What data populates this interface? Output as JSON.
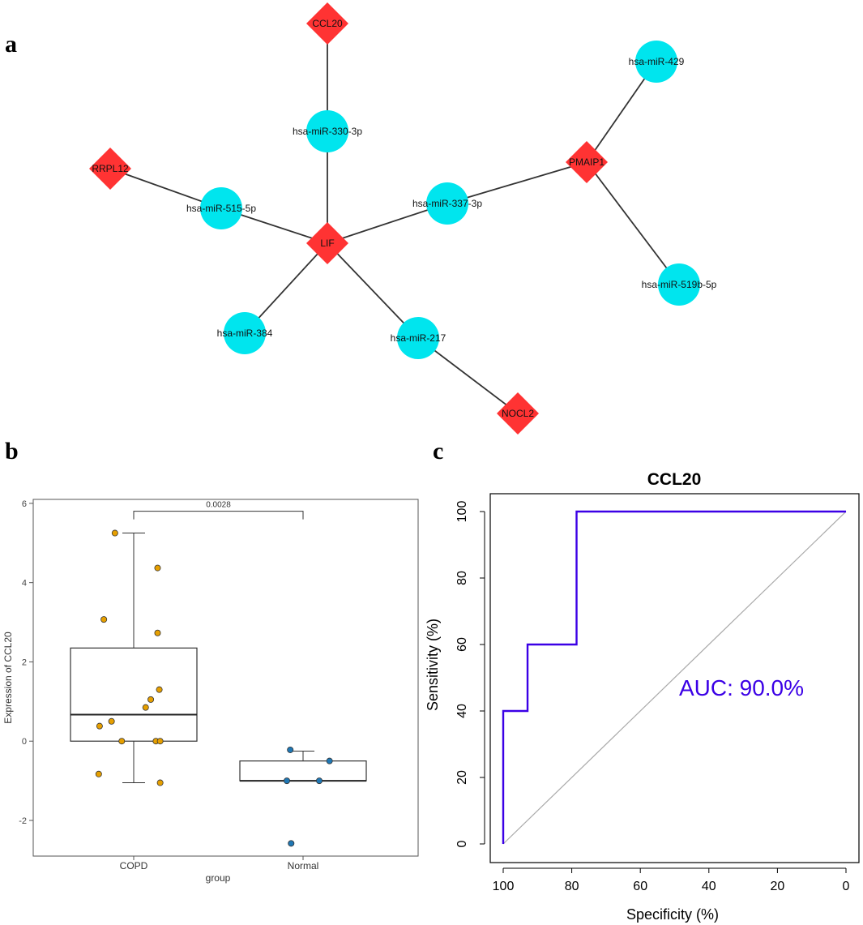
{
  "panels": {
    "a": "a",
    "b": "b",
    "c": "c"
  },
  "network": {
    "gene_color": "#ff3333",
    "mirna_color": "#00e5ee",
    "edge_color": "#333333",
    "nodes": [
      {
        "id": "CCL20",
        "type": "gene"
      },
      {
        "id": "RRPL12",
        "type": "gene"
      },
      {
        "id": "LIF",
        "type": "gene"
      },
      {
        "id": "PMAIP1",
        "type": "gene"
      },
      {
        "id": "NOCL2",
        "type": "gene"
      },
      {
        "id": "hsa-miR-330-3p",
        "type": "mirna"
      },
      {
        "id": "hsa-miR-515-5p",
        "type": "mirna"
      },
      {
        "id": "hsa-miR-337-3p",
        "type": "mirna"
      },
      {
        "id": "hsa-miR-429",
        "type": "mirna"
      },
      {
        "id": "hsa-miR-519b-5p",
        "type": "mirna"
      },
      {
        "id": "hsa-miR-384",
        "type": "mirna"
      },
      {
        "id": "hsa-miR-217",
        "type": "mirna"
      }
    ],
    "edges": [
      [
        "CCL20",
        "hsa-miR-330-3p"
      ],
      [
        "hsa-miR-330-3p",
        "LIF"
      ],
      [
        "RRPL12",
        "hsa-miR-515-5p"
      ],
      [
        "hsa-miR-515-5p",
        "LIF"
      ],
      [
        "LIF",
        "hsa-miR-337-3p"
      ],
      [
        "hsa-miR-337-3p",
        "PMAIP1"
      ],
      [
        "PMAIP1",
        "hsa-miR-429"
      ],
      [
        "PMAIP1",
        "hsa-miR-519b-5p"
      ],
      [
        "LIF",
        "hsa-miR-384"
      ],
      [
        "LIF",
        "hsa-miR-217"
      ],
      [
        "hsa-miR-217",
        "NOCL2"
      ]
    ]
  },
  "chart_data": [
    {
      "type": "box",
      "title": "",
      "xlabel": "group",
      "ylabel": "Expression of CCL20",
      "ylim": [
        -2.9,
        6.1
      ],
      "yticks": [
        -2,
        0,
        2,
        4,
        6
      ],
      "categories": [
        "COPD",
        "Normal"
      ],
      "boxes": [
        {
          "name": "COPD",
          "whisker_low": -1.05,
          "q1": 0.0,
          "median": 0.67,
          "q3": 2.35,
          "whisker_high": 5.25,
          "color": "#e69f00"
        },
        {
          "name": "Normal",
          "whisker_low": -1.0,
          "q1": -1.0,
          "median": -1.0,
          "q3": -0.5,
          "whisker_high": -0.25,
          "color": "#1f77b4"
        }
      ],
      "points": [
        {
          "group": "COPD",
          "jitter": -0.22,
          "value": 5.25
        },
        {
          "group": "COPD",
          "jitter": 0.28,
          "value": 4.37
        },
        {
          "group": "COPD",
          "jitter": -0.35,
          "value": 3.07
        },
        {
          "group": "COPD",
          "jitter": 0.28,
          "value": 2.73
        },
        {
          "group": "COPD",
          "jitter": 0.3,
          "value": 1.3
        },
        {
          "group": "COPD",
          "jitter": 0.2,
          "value": 1.05
        },
        {
          "group": "COPD",
          "jitter": 0.14,
          "value": 0.85
        },
        {
          "group": "COPD",
          "jitter": -0.26,
          "value": 0.5
        },
        {
          "group": "COPD",
          "jitter": -0.4,
          "value": 0.38
        },
        {
          "group": "COPD",
          "jitter": -0.14,
          "value": 0.0
        },
        {
          "group": "COPD",
          "jitter": 0.26,
          "value": 0.0
        },
        {
          "group": "COPD",
          "jitter": 0.31,
          "value": 0.0
        },
        {
          "group": "COPD",
          "jitter": -0.41,
          "value": -0.83
        },
        {
          "group": "COPD",
          "jitter": 0.31,
          "value": -1.05
        },
        {
          "group": "Normal",
          "jitter": -0.15,
          "value": -0.22
        },
        {
          "group": "Normal",
          "jitter": 0.31,
          "value": -0.5
        },
        {
          "group": "Normal",
          "jitter": -0.19,
          "value": -1.0
        },
        {
          "group": "Normal",
          "jitter": 0.19,
          "value": -1.0
        },
        {
          "group": "Normal",
          "jitter": -0.14,
          "value": -2.58
        }
      ],
      "annotation": {
        "label": "0.0028",
        "from": "COPD",
        "to": "Normal",
        "y": 5.8
      }
    },
    {
      "type": "line",
      "title": "CCL20",
      "xlabel": "Specificity (%)",
      "ylabel": "Sensitivity (%)",
      "xlim": [
        100,
        0
      ],
      "ylim": [
        0,
        100
      ],
      "xticks": [
        100,
        80,
        60,
        40,
        20,
        0
      ],
      "yticks": [
        0,
        20,
        40,
        60,
        80,
        100
      ],
      "series": [
        {
          "name": "ROC",
          "color": "#3b00e6",
          "x": [
            100,
            100,
            92.9,
            92.9,
            78.6,
            78.6,
            0
          ],
          "y": [
            0,
            40,
            40,
            60,
            60,
            100,
            100
          ]
        },
        {
          "name": "chance",
          "color": "#aaaaaa",
          "x": [
            100,
            0
          ],
          "y": [
            0,
            100
          ]
        }
      ],
      "annotation": "AUC: 90.0%"
    }
  ]
}
